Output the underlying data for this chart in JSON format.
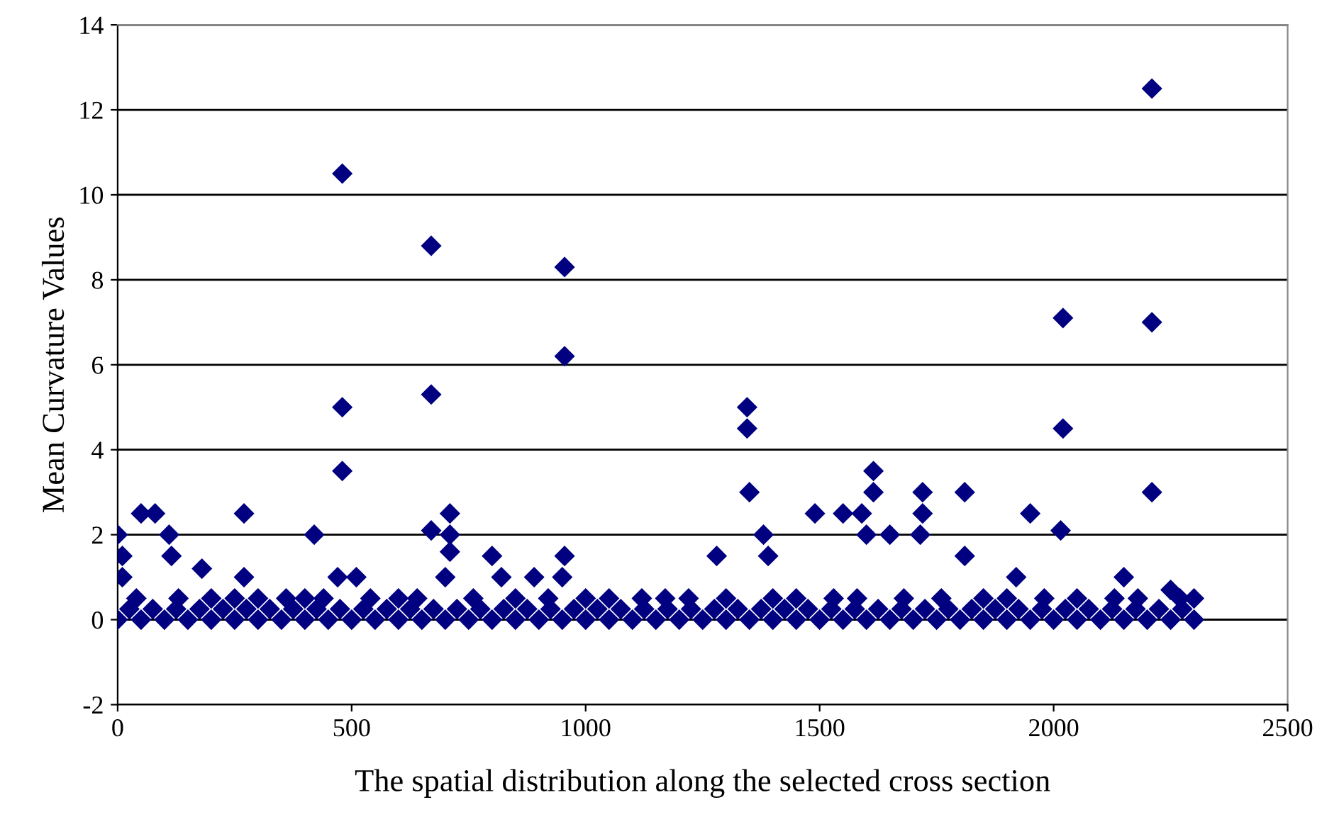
{
  "chart_data": {
    "type": "scatter",
    "xlabel": "The spatial distribution along the selected cross section",
    "ylabel": "Mean Curvature Values",
    "x": [
      0,
      10,
      10,
      50,
      80,
      110,
      115,
      180,
      270,
      270,
      420,
      480,
      480,
      480,
      470,
      510,
      670,
      670,
      670,
      710,
      710,
      710,
      700,
      800,
      820,
      890,
      955,
      955,
      955,
      950,
      1280,
      1345,
      1345,
      1350,
      1380,
      1390,
      1490,
      1550,
      1590,
      1600,
      1615,
      1615,
      1650,
      1720,
      1720,
      1715,
      1810,
      1810,
      1950,
      1920,
      2020,
      2020,
      2015,
      2210,
      2210,
      2210,
      2150,
      2250,
      0,
      50,
      100,
      150,
      200,
      250,
      300,
      350,
      400,
      450,
      500,
      550,
      600,
      650,
      700,
      750,
      800,
      850,
      900,
      950,
      1000,
      1050,
      1100,
      1150,
      1200,
      1250,
      1300,
      1350,
      1400,
      1450,
      1500,
      1550,
      1600,
      1650,
      1700,
      1750,
      1800,
      1850,
      1900,
      1950,
      2000,
      2050,
      2100,
      2150,
      2200,
      2250,
      2300,
      25,
      75,
      125,
      175,
      225,
      275,
      325,
      375,
      425,
      475,
      525,
      575,
      625,
      675,
      725,
      775,
      825,
      875,
      925,
      975,
      1025,
      1075,
      1125,
      1175,
      1225,
      1275,
      1325,
      1375,
      1425,
      1475,
      1525,
      1575,
      1625,
      1675,
      1725,
      1775,
      1825,
      1875,
      1925,
      1975,
      2025,
      2075,
      2125,
      2175,
      2225,
      2275,
      40,
      130,
      200,
      250,
      300,
      360,
      400,
      440,
      540,
      600,
      640,
      760,
      850,
      920,
      1000,
      1050,
      1120,
      1170,
      1220,
      1300,
      1400,
      1450,
      1530,
      1580,
      1680,
      1760,
      1850,
      1900,
      1980,
      2050,
      2130,
      2180,
      2270,
      2300
    ],
    "values": [
      2,
      1.5,
      1,
      2.5,
      2.5,
      2,
      1.5,
      1.2,
      2.5,
      1,
      2,
      10.5,
      5,
      3.5,
      1,
      1,
      8.8,
      5.3,
      2.1,
      2.5,
      2,
      1.6,
      1,
      1.5,
      1,
      1,
      8.3,
      6.2,
      1.5,
      1,
      1.5,
      5,
      4.5,
      3,
      2,
      1.5,
      2.5,
      2.5,
      2.5,
      2,
      3.5,
      3,
      2,
      3,
      2.5,
      2,
      3,
      1.5,
      2.5,
      1,
      7.1,
      4.5,
      2.1,
      12.5,
      7,
      3,
      1,
      0.7,
      0,
      0,
      0,
      0,
      0,
      0,
      0,
      0,
      0,
      0,
      0,
      0,
      0,
      0,
      0,
      0,
      0,
      0,
      0,
      0,
      0,
      0,
      0,
      0,
      0,
      0,
      0,
      0,
      0,
      0,
      0,
      0,
      0,
      0,
      0,
      0,
      0,
      0,
      0,
      0,
      0,
      0,
      0,
      0,
      0,
      0,
      0,
      0.25,
      0.25,
      0.25,
      0.25,
      0.25,
      0.25,
      0.25,
      0.25,
      0.25,
      0.25,
      0.25,
      0.25,
      0.25,
      0.25,
      0.25,
      0.25,
      0.25,
      0.25,
      0.25,
      0.25,
      0.25,
      0.25,
      0.25,
      0.25,
      0.25,
      0.25,
      0.25,
      0.25,
      0.25,
      0.25,
      0.25,
      0.25,
      0.25,
      0.25,
      0.25,
      0.25,
      0.25,
      0.25,
      0.25,
      0.25,
      0.25,
      0.25,
      0.25,
      0.25,
      0.25,
      0.25,
      0.5,
      0.5,
      0.5,
      0.5,
      0.5,
      0.5,
      0.5,
      0.5,
      0.5,
      0.5,
      0.5,
      0.5,
      0.5,
      0.5,
      0.5,
      0.5,
      0.5,
      0.5,
      0.5,
      0.5,
      0.5,
      0.5,
      0.5,
      0.5,
      0.5,
      0.5,
      0.5,
      0.5,
      0.5,
      0.5,
      0.5,
      0.5,
      0.5,
      0.5
    ],
    "color": "#000080",
    "marker": "diamond",
    "xlim": [
      0,
      2500
    ],
    "xticks": [
      0,
      500,
      1000,
      1500,
      2000,
      2500
    ],
    "ylim": [
      -2,
      14
    ],
    "yticks": [
      -2,
      0,
      2,
      4,
      6,
      8,
      10,
      12,
      14
    ],
    "grid": "y",
    "legend": false
  }
}
